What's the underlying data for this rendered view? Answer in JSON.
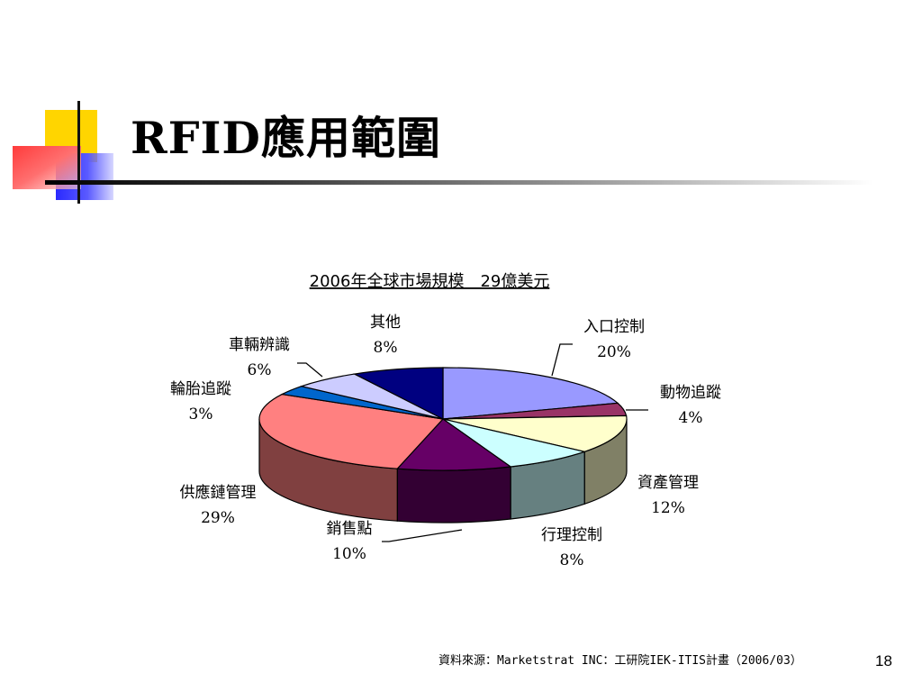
{
  "slide": {
    "title_latin": "RFID",
    "title_cjk": "應用範圍",
    "source": "資料來源：Marketstrat INC：工研院IEK-ITIS計畫（2006/03）",
    "page_number": "18"
  },
  "chart_data": {
    "type": "pie",
    "title": "2006年全球市場規模　29億美元",
    "three_d": true,
    "legend": "none",
    "slices": [
      {
        "label": "入口控制",
        "value": 20,
        "display": "20%",
        "color": "#9999ff",
        "side": "#6b6bb3"
      },
      {
        "label": "動物追蹤",
        "value": 4,
        "display": "4%",
        "color": "#993366",
        "side": "#6b2447"
      },
      {
        "label": "資產管理",
        "value": 12,
        "display": "12%",
        "color": "#ffffcc",
        "side": "#808066"
      },
      {
        "label": "行理控制",
        "value": 8,
        "display": "8%",
        "color": "#ccffff",
        "side": "#668080"
      },
      {
        "label": "銷售點",
        "value": 10,
        "display": "10%",
        "color": "#660066",
        "side": "#330033"
      },
      {
        "label": "供應鏈管理",
        "value": 29,
        "display": "29%",
        "color": "#ff8080",
        "side": "#804040"
      },
      {
        "label": "輪胎追蹤",
        "value": 3,
        "display": "3%",
        "color": "#0066cc",
        "side": "#003366"
      },
      {
        "label": "車輛辨識",
        "value": 6,
        "display": "6%",
        "color": "#ccccff",
        "side": "#666680"
      },
      {
        "label": "其他",
        "value": 8,
        "display": "8%",
        "color": "#000080",
        "side": "#000040"
      }
    ]
  }
}
